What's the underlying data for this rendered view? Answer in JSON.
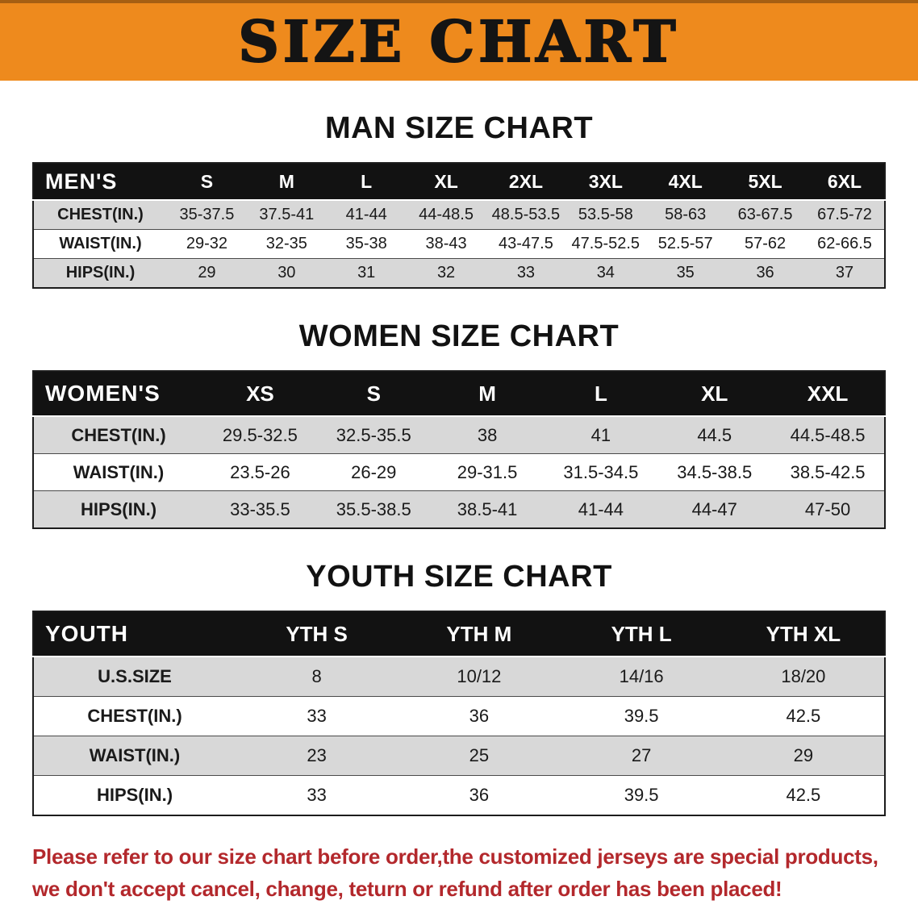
{
  "banner": {
    "title": "SIZE CHART"
  },
  "colors": {
    "banner_bg": "#ee8a1d",
    "header_bg": "#121212",
    "stripe": "#d8d8d8",
    "notice_color": "#b3282c"
  },
  "sections": [
    {
      "heading": "MAN SIZE CHART",
      "table": {
        "corner": "MEN'S",
        "columns": [
          "S",
          "M",
          "L",
          "XL",
          "2XL",
          "3XL",
          "4XL",
          "5XL",
          "6XL"
        ],
        "rows": [
          {
            "label": "CHEST(IN.)",
            "values": [
              "35-37.5",
              "37.5-41",
              "41-44",
              "44-48.5",
              "48.5-53.5",
              "53.5-58",
              "58-63",
              "63-67.5",
              "67.5-72"
            ]
          },
          {
            "label": "WAIST(IN.)",
            "values": [
              "29-32",
              "32-35",
              "35-38",
              "38-43",
              "43-47.5",
              "47.5-52.5",
              "52.5-57",
              "57-62",
              "62-66.5"
            ]
          },
          {
            "label": "HIPS(IN.)",
            "values": [
              "29",
              "30",
              "31",
              "32",
              "33",
              "34",
              "35",
              "36",
              "37"
            ]
          }
        ]
      }
    },
    {
      "heading": "WOMEN SIZE CHART",
      "table": {
        "corner": "WOMEN'S",
        "columns": [
          "XS",
          "S",
          "M",
          "L",
          "XL",
          "XXL"
        ],
        "rows": [
          {
            "label": "CHEST(IN.)",
            "values": [
              "29.5-32.5",
              "32.5-35.5",
              "38",
              "41",
              "44.5",
              "44.5-48.5"
            ]
          },
          {
            "label": "WAIST(IN.)",
            "values": [
              "23.5-26",
              "26-29",
              "29-31.5",
              "31.5-34.5",
              "34.5-38.5",
              "38.5-42.5"
            ]
          },
          {
            "label": "HIPS(IN.)",
            "values": [
              "33-35.5",
              "35.5-38.5",
              "38.5-41",
              "41-44",
              "44-47",
              "47-50"
            ]
          }
        ]
      }
    },
    {
      "heading": "YOUTH SIZE CHART",
      "table": {
        "corner": "YOUTH",
        "columns": [
          "YTH S",
          "YTH M",
          "YTH L",
          "YTH XL"
        ],
        "rows": [
          {
            "label": "U.S.SIZE",
            "values": [
              "8",
              "10/12",
              "14/16",
              "18/20"
            ]
          },
          {
            "label": "CHEST(IN.)",
            "values": [
              "33",
              "36",
              "39.5",
              "42.5"
            ]
          },
          {
            "label": "WAIST(IN.)",
            "values": [
              "23",
              "25",
              "27",
              "29"
            ]
          },
          {
            "label": "HIPS(IN.)",
            "values": [
              "33",
              "36",
              "39.5",
              "42.5"
            ]
          }
        ]
      }
    }
  ],
  "footer": {
    "lines": [
      "Please refer to our size chart before order,the customized jerseys are special products,",
      "we don't accept cancel, change, teturn or refund after order has been placed!"
    ]
  }
}
